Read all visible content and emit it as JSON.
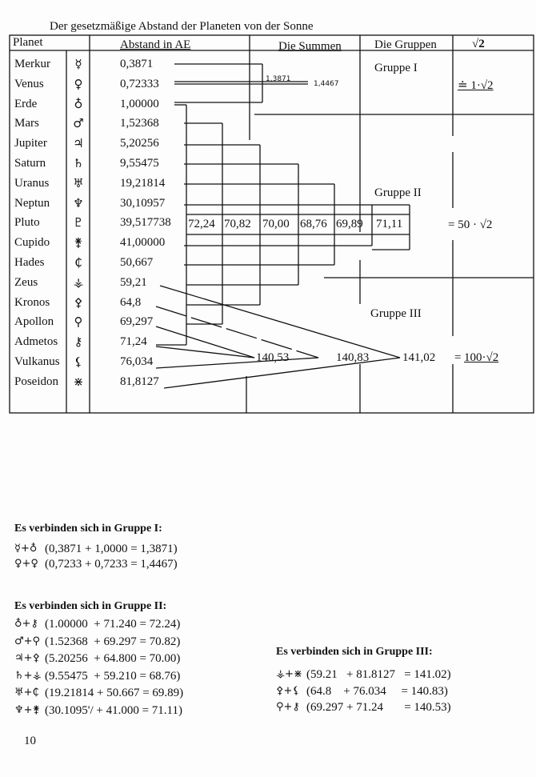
{
  "title": "Der gesetzmäßige Abstand der Planeten von der Sonne",
  "headers": {
    "planet": "Planet",
    "abstand": "Abstand in AE",
    "summen": "Die Summen",
    "gruppen": "Die Gruppen",
    "sqrt": "√2"
  },
  "planets": [
    {
      "name": "Merkur",
      "symbol": "☿",
      "value": "0,3871"
    },
    {
      "name": "Venus",
      "symbol": "♀",
      "value": "0,72333"
    },
    {
      "name": "Erde",
      "symbol": "♁",
      "value": "1,00000"
    },
    {
      "name": "Mars",
      "symbol": "♂",
      "value": "1,52368"
    },
    {
      "name": "Jupiter",
      "symbol": "♃",
      "value": "5,20256"
    },
    {
      "name": "Saturn",
      "symbol": "♄",
      "value": "9,55475"
    },
    {
      "name": "Uranus",
      "symbol": "♅",
      "value": "19,21814"
    },
    {
      "name": "Neptun",
      "symbol": "♆",
      "value": "30,10957"
    },
    {
      "name": "Pluto",
      "symbol": "♇",
      "value": "39,517738"
    },
    {
      "name": "Cupido",
      "symbol": "⚵",
      "value": "41,00000"
    },
    {
      "name": "Hades",
      "symbol": "₵",
      "value": "50,667"
    },
    {
      "name": "Zeus",
      "symbol": "⚶",
      "value": "59,21"
    },
    {
      "name": "Kronos",
      "symbol": "⚴",
      "value": "64,8"
    },
    {
      "name": "Apollon",
      "symbol": "⚲",
      "value": "69,297"
    },
    {
      "name": "Admetos",
      "symbol": "⚷",
      "value": "71,24"
    },
    {
      "name": "Vulkanus",
      "symbol": "⚸",
      "value": "76,034"
    },
    {
      "name": "Poseidon",
      "symbol": "⋇",
      "value": "81,8127"
    }
  ],
  "group1": {
    "label": "Gruppe I",
    "sum_merkur_erde": "1,3871",
    "sum_venus": "1,4467",
    "formula": "≐ 1·√2"
  },
  "group2": {
    "label": "Gruppe II",
    "sums": [
      "72,24",
      "70,82",
      "70,00",
      "68,76",
      "69,89",
      "71,11"
    ],
    "formula": "= 50 · √2"
  },
  "group3": {
    "label": "Gruppe III",
    "sums": [
      "140,53",
      "140,83",
      "141,02"
    ],
    "formula": "100·√2",
    "eq": "="
  },
  "lower": {
    "g1_heading": "Es verbinden sich in Gruppe I:",
    "g1": [
      {
        "sym": "☿+♁",
        "eq": "(0,3871 + 1,0000 = 1,3871)"
      },
      {
        "sym": "♀+♀",
        "eq": "(0,7233 + 0,7233 = 1,4467)"
      }
    ],
    "g2_heading": "Es verbinden sich in Gruppe II:",
    "g2": [
      {
        "sym": "♁+⚷",
        "eq": "(1.00000  + 71.240 = 72.24)"
      },
      {
        "sym": "♂+⚲",
        "eq": "(1.52368  + 69.297 = 70.82)"
      },
      {
        "sym": "♃+⚴",
        "eq": "(5.20256  + 64.800 = 70.00)"
      },
      {
        "sym": "♄+⚶",
        "eq": "(9.55475  + 59.210 = 68.76)"
      },
      {
        "sym": "♅+₵",
        "eq": "(19.21814 + 50.667 = 69.89)"
      },
      {
        "sym": "♆+⚵",
        "eq": "(30.1095'/ + 41.000 = 71.11)"
      }
    ],
    "g3_heading": "Es verbinden sich in Gruppe III:",
    "g3": [
      {
        "sym": "⚶+⋇",
        "eq": "(59.21   + 81.8127   = 141.02)"
      },
      {
        "sym": "⚴+⚸",
        "eq": "(64.8    + 76.034     = 140.83)"
      },
      {
        "sym": "⚲+⚷",
        "eq": "(69.297 + 71.24       = 140.53)"
      }
    ]
  },
  "page_number": "10"
}
